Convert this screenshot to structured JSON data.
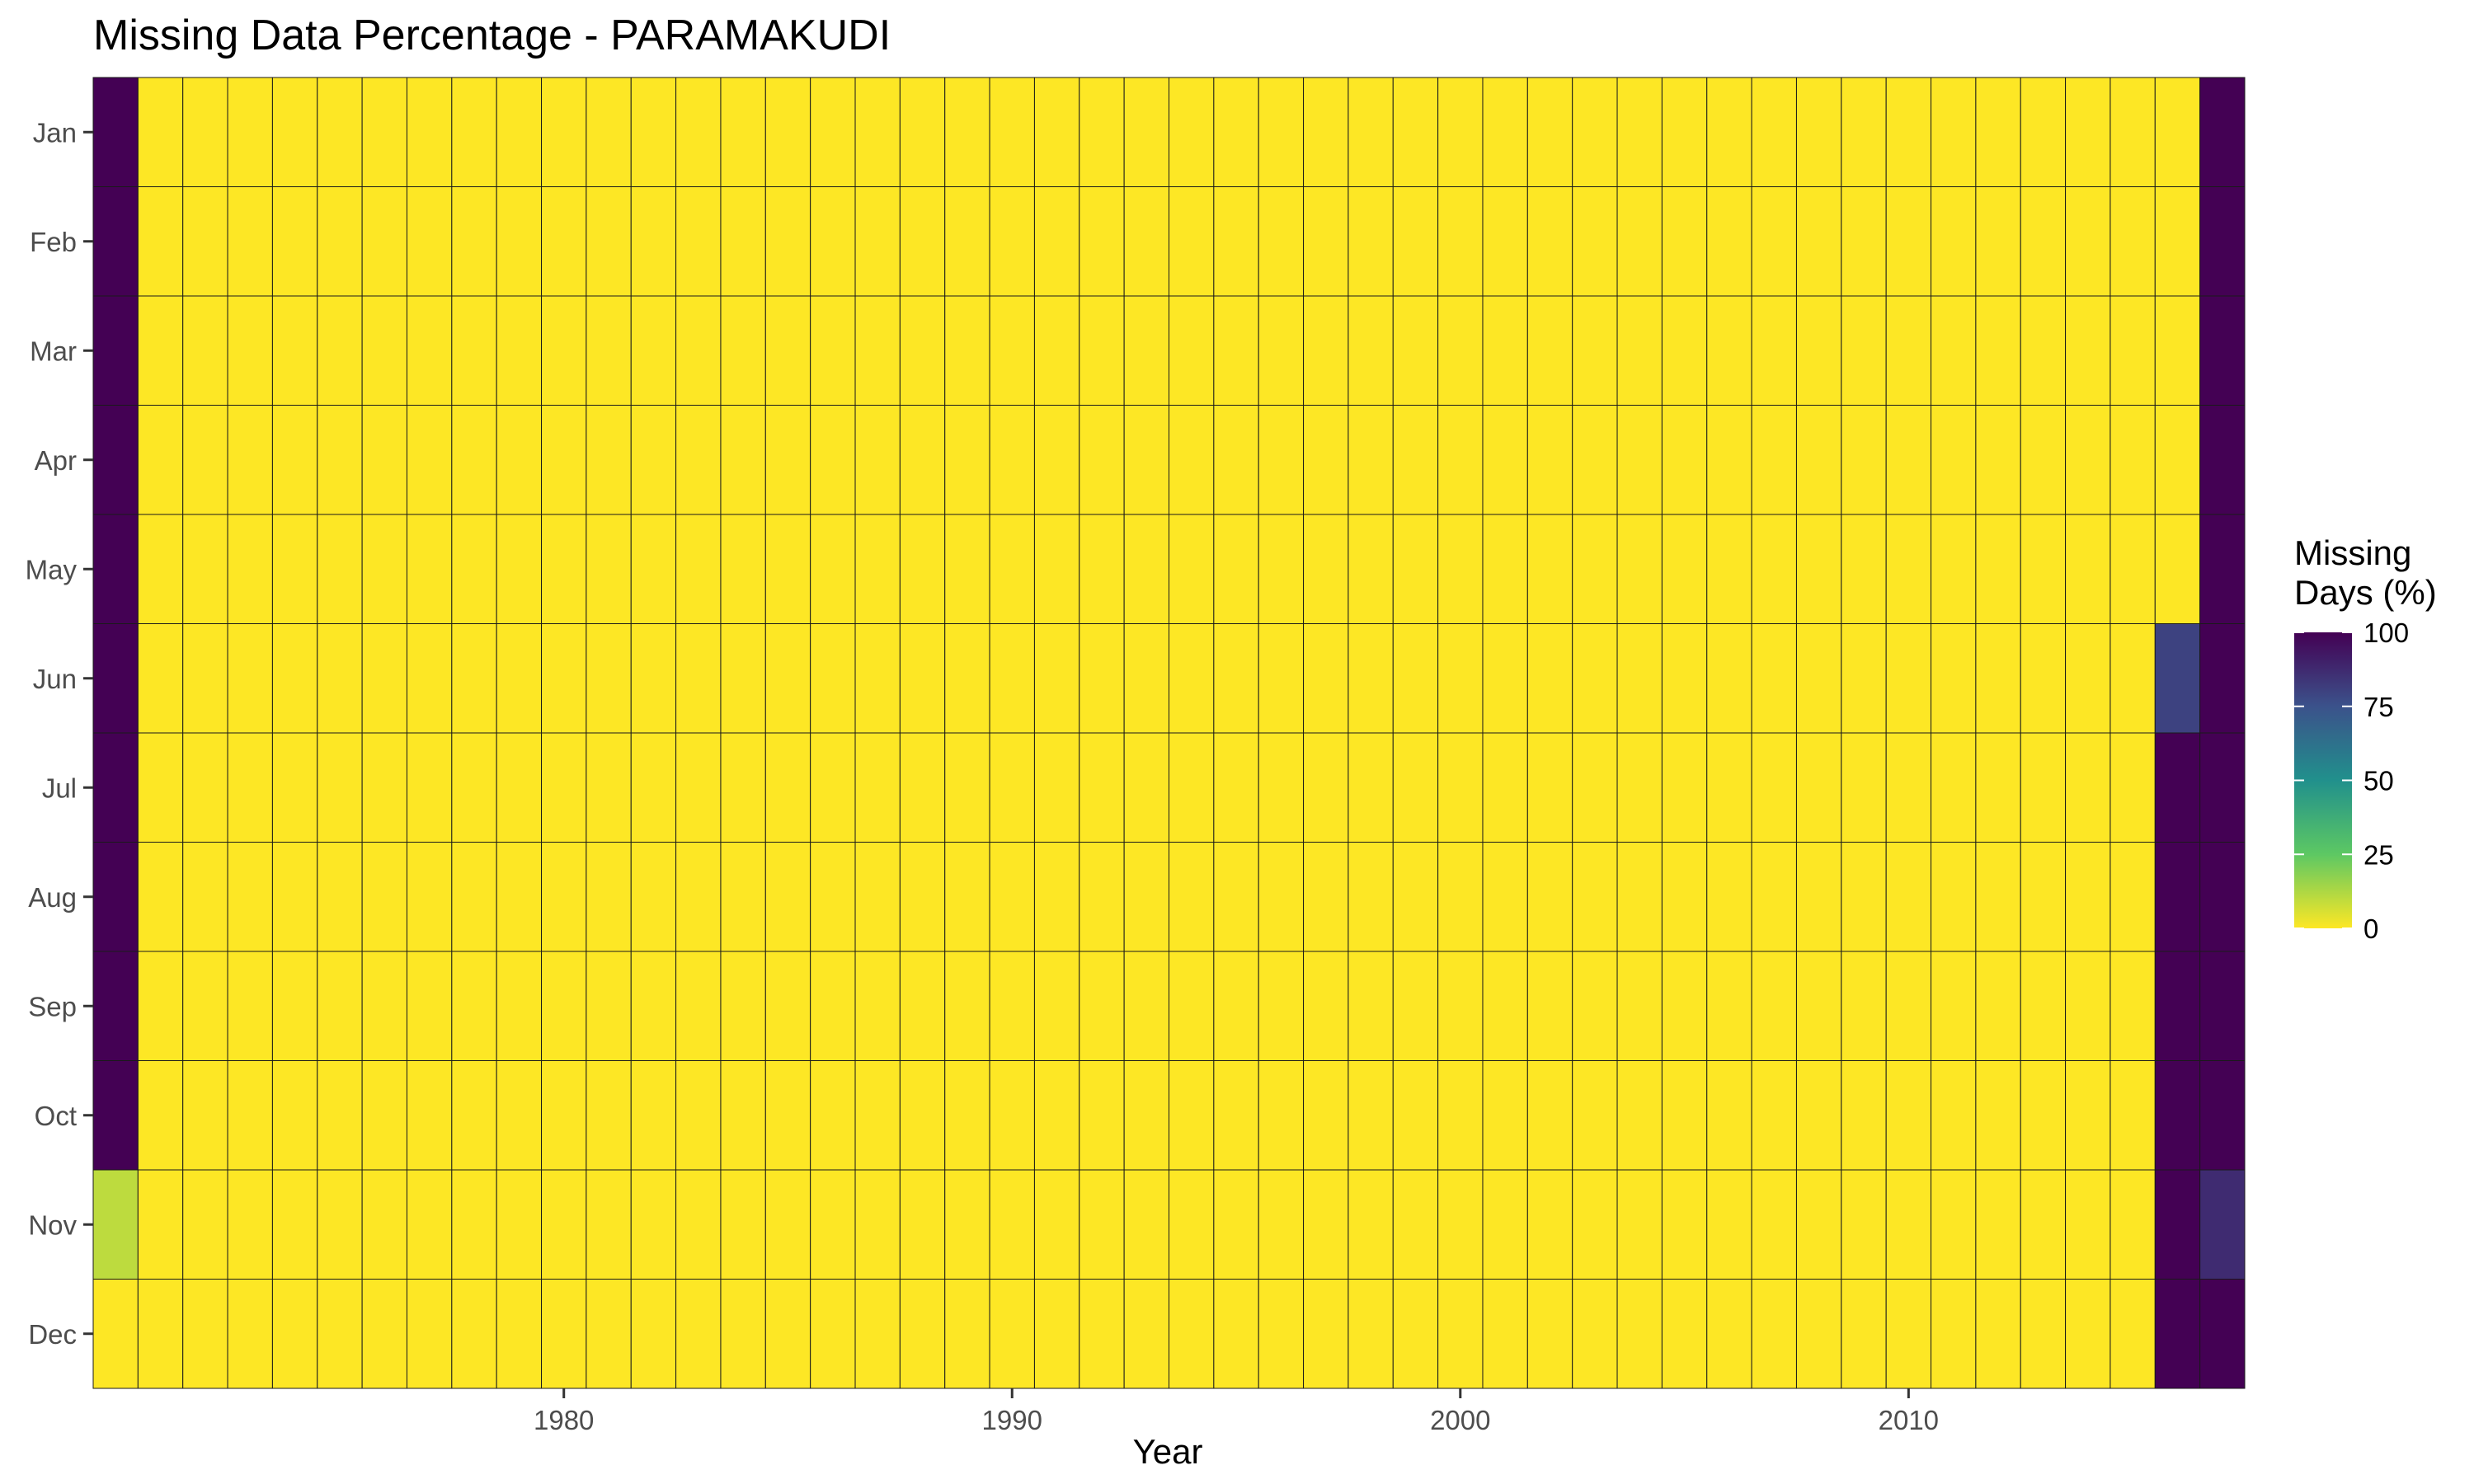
{
  "chart_data": {
    "type": "heatmap",
    "title": "Missing Data Percentage - PARAMAKUDI",
    "xlabel": "Year",
    "ylabel": "",
    "x_first_year": 1970,
    "x_last_year": 2017,
    "x_ticks": [
      1980,
      1990,
      2000,
      2010
    ],
    "x_tick_labels": [
      "1980",
      "1990",
      "2000",
      "2010"
    ],
    "months": [
      "Jan",
      "Feb",
      "Mar",
      "Apr",
      "May",
      "Jun",
      "Jul",
      "Aug",
      "Sep",
      "Oct",
      "Nov",
      "Dec"
    ],
    "default_value": 0,
    "values": [
      {
        "year": 1970,
        "month": "Jan",
        "value": 100
      },
      {
        "year": 1970,
        "month": "Feb",
        "value": 100
      },
      {
        "year": 1970,
        "month": "Mar",
        "value": 100
      },
      {
        "year": 1970,
        "month": "Apr",
        "value": 100
      },
      {
        "year": 1970,
        "month": "May",
        "value": 100
      },
      {
        "year": 1970,
        "month": "Jun",
        "value": 100
      },
      {
        "year": 1970,
        "month": "Jul",
        "value": 100
      },
      {
        "year": 1970,
        "month": "Aug",
        "value": 100
      },
      {
        "year": 1970,
        "month": "Sep",
        "value": 100
      },
      {
        "year": 1970,
        "month": "Oct",
        "value": 100
      },
      {
        "year": 1970,
        "month": "Nov",
        "value": 10
      },
      {
        "year": 1970,
        "month": "Dec",
        "value": 0
      },
      {
        "year": 2016,
        "month": "Jun",
        "value": 80
      },
      {
        "year": 2016,
        "month": "Jul",
        "value": 100
      },
      {
        "year": 2016,
        "month": "Aug",
        "value": 100
      },
      {
        "year": 2016,
        "month": "Sep",
        "value": 100
      },
      {
        "year": 2016,
        "month": "Oct",
        "value": 100
      },
      {
        "year": 2016,
        "month": "Nov",
        "value": 100
      },
      {
        "year": 2016,
        "month": "Dec",
        "value": 100
      },
      {
        "year": 2017,
        "month": "Jan",
        "value": 100
      },
      {
        "year": 2017,
        "month": "Feb",
        "value": 100
      },
      {
        "year": 2017,
        "month": "Mar",
        "value": 100
      },
      {
        "year": 2017,
        "month": "Apr",
        "value": 100
      },
      {
        "year": 2017,
        "month": "May",
        "value": 100
      },
      {
        "year": 2017,
        "month": "Jun",
        "value": 100
      },
      {
        "year": 2017,
        "month": "Jul",
        "value": 100
      },
      {
        "year": 2017,
        "month": "Aug",
        "value": 100
      },
      {
        "year": 2017,
        "month": "Sep",
        "value": 100
      },
      {
        "year": 2017,
        "month": "Oct",
        "value": 100
      },
      {
        "year": 2017,
        "month": "Nov",
        "value": 87
      },
      {
        "year": 2017,
        "month": "Dec",
        "value": 100
      }
    ],
    "color_scale": {
      "name": "viridis (reversed)",
      "range": [
        0,
        100
      ],
      "stops": [
        {
          "value": 0,
          "color": "#FDE725"
        },
        {
          "value": 25,
          "color": "#5DC863"
        },
        {
          "value": 50,
          "color": "#21908C"
        },
        {
          "value": 75,
          "color": "#3B528B"
        },
        {
          "value": 100,
          "color": "#440154"
        }
      ]
    },
    "legend": {
      "title_lines": [
        "Missing",
        "Days (%)"
      ],
      "ticks": [
        100,
        75,
        50,
        25,
        0
      ],
      "tick_labels": [
        "100",
        "75",
        "50",
        "25",
        "0"
      ],
      "position": "right"
    },
    "cell_border_color": "#1a1a1a",
    "background": "#ffffff",
    "grid": false
  }
}
